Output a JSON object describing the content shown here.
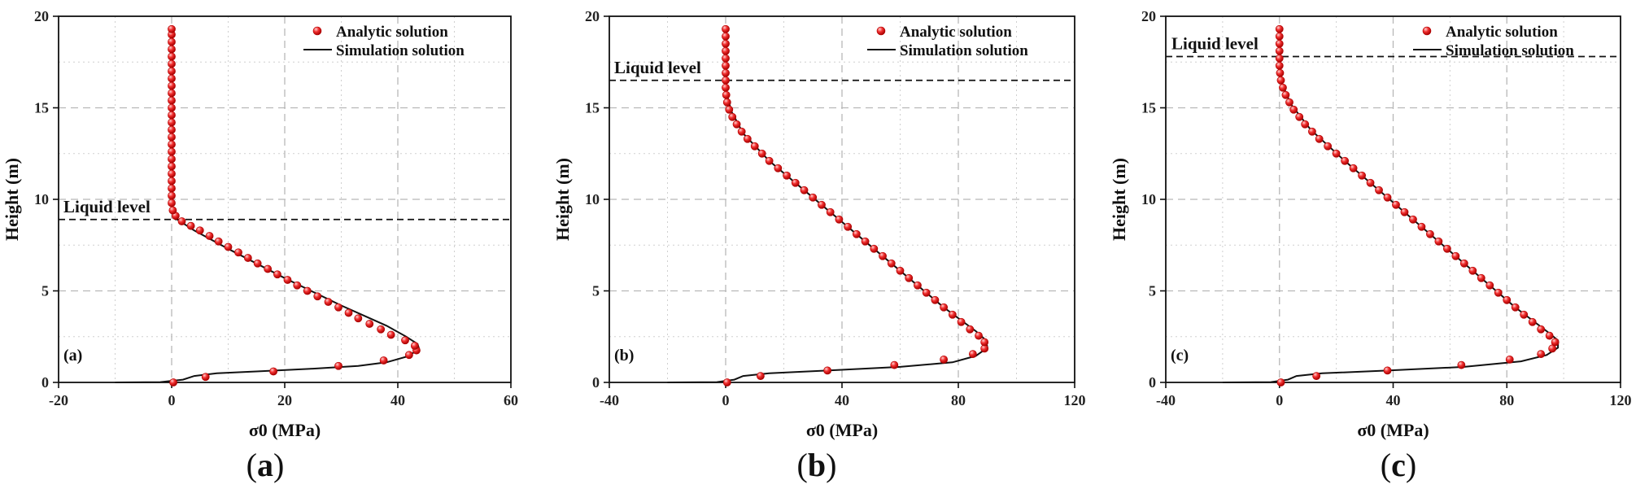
{
  "chart_data": [
    {
      "type": "scatter",
      "panel_label": "(a)",
      "caption": "(a)",
      "caption_bold": "a",
      "xlabel": "σ0 (MPa)",
      "ylabel": "Height (m)",
      "xlim": [
        -20,
        60
      ],
      "ylim": [
        0,
        20
      ],
      "xticks": [
        -20,
        0,
        20,
        40,
        60
      ],
      "yticks": [
        0,
        5,
        10,
        15,
        20
      ],
      "liquid_level": 8.9,
      "liquid_level_label": "Liquid level",
      "legend": [
        "Analytic solution",
        "Simulation solution"
      ],
      "series": [
        {
          "name": "Analytic solution",
          "marker": "circle",
          "points": [
            [
              0.3,
              0
            ],
            [
              6,
              0.3
            ],
            [
              18,
              0.6
            ],
            [
              29.5,
              0.9
            ],
            [
              37.5,
              1.2
            ],
            [
              42,
              1.5
            ],
            [
              43.3,
              1.75
            ],
            [
              43,
              2
            ],
            [
              41.3,
              2.3
            ],
            [
              38.8,
              2.6
            ],
            [
              37,
              2.9
            ],
            [
              35,
              3.2
            ],
            [
              33,
              3.5
            ],
            [
              31.3,
              3.8
            ],
            [
              29.5,
              4.1
            ],
            [
              27.7,
              4.4
            ],
            [
              25.8,
              4.7
            ],
            [
              24,
              5.0
            ],
            [
              22.2,
              5.3
            ],
            [
              20.5,
              5.6
            ],
            [
              18.7,
              5.9
            ],
            [
              17,
              6.2
            ],
            [
              15.2,
              6.5
            ],
            [
              13.5,
              6.8
            ],
            [
              11.8,
              7.1
            ],
            [
              10,
              7.4
            ],
            [
              8.3,
              7.7
            ],
            [
              6.7,
              8.0
            ],
            [
              5,
              8.3
            ],
            [
              3.4,
              8.55
            ],
            [
              1.8,
              8.8
            ],
            [
              0.7,
              9.1
            ],
            [
              0.2,
              9.4
            ],
            [
              0,
              9.8
            ],
            [
              0,
              10.2
            ],
            [
              0,
              10.6
            ],
            [
              0,
              11.0
            ],
            [
              0,
              11.4
            ],
            [
              0,
              11.8
            ],
            [
              0,
              12.2
            ],
            [
              0,
              12.6
            ],
            [
              0,
              13.0
            ],
            [
              0,
              13.4
            ],
            [
              0,
              13.8
            ],
            [
              0,
              14.2
            ],
            [
              0,
              14.6
            ],
            [
              0,
              15.0
            ],
            [
              0,
              15.4
            ],
            [
              0,
              15.8
            ],
            [
              0,
              16.2
            ],
            [
              0,
              16.6
            ],
            [
              0,
              17.0
            ],
            [
              0,
              17.4
            ],
            [
              0,
              17.8
            ],
            [
              0,
              18.2
            ],
            [
              0,
              18.6
            ],
            [
              0,
              19.0
            ],
            [
              0,
              19.3
            ]
          ]
        },
        {
          "name": "Simulation solution",
          "line": "solid",
          "points": [
            [
              -10,
              0
            ],
            [
              -2,
              0.02
            ],
            [
              2,
              0.15
            ],
            [
              4,
              0.35
            ],
            [
              8,
              0.5
            ],
            [
              15,
              0.6
            ],
            [
              25,
              0.75
            ],
            [
              33,
              0.9
            ],
            [
              38,
              1.1
            ],
            [
              41.5,
              1.4
            ],
            [
              43.8,
              1.8
            ],
            [
              43.5,
              2.1
            ],
            [
              41.5,
              2.5
            ],
            [
              38,
              3.1
            ],
            [
              30,
              4.2
            ],
            [
              20,
              5.7
            ],
            [
              10,
              7.3
            ],
            [
              4,
              8.3
            ],
            [
              1,
              8.9
            ],
            [
              0.2,
              9.3
            ],
            [
              0,
              10
            ],
            [
              0,
              19.3
            ]
          ]
        }
      ]
    },
    {
      "type": "scatter",
      "panel_label": "(b)",
      "caption": "(b)",
      "caption_bold": "b",
      "xlabel": "σ0 (MPa)",
      "ylabel": "Height (m)",
      "xlim": [
        -40,
        120
      ],
      "ylim": [
        0,
        20
      ],
      "xticks": [
        -40,
        0,
        40,
        80,
        120
      ],
      "yticks": [
        0,
        5,
        10,
        15,
        20
      ],
      "liquid_level": 16.5,
      "liquid_level_label": "Liquid level",
      "legend": [
        "Analytic solution",
        "Simulation solution"
      ],
      "series": [
        {
          "name": "Analytic solution",
          "marker": "circle",
          "points": [
            [
              0.5,
              0
            ],
            [
              12,
              0.35
            ],
            [
              35,
              0.65
            ],
            [
              58,
              0.95
            ],
            [
              75,
              1.25
            ],
            [
              85,
              1.55
            ],
            [
              89,
              1.85
            ],
            [
              89,
              2.2
            ],
            [
              87,
              2.55
            ],
            [
              84,
              2.9
            ],
            [
              81,
              3.3
            ],
            [
              78,
              3.7
            ],
            [
              75,
              4.1
            ],
            [
              72,
              4.5
            ],
            [
              69,
              4.9
            ],
            [
              66,
              5.3
            ],
            [
              63,
              5.7
            ],
            [
              60,
              6.1
            ],
            [
              57,
              6.5
            ],
            [
              54,
              6.9
            ],
            [
              51,
              7.3
            ],
            [
              48,
              7.7
            ],
            [
              45,
              8.1
            ],
            [
              42,
              8.5
            ],
            [
              39,
              8.9
            ],
            [
              36,
              9.3
            ],
            [
              33,
              9.7
            ],
            [
              30,
              10.1
            ],
            [
              27,
              10.5
            ],
            [
              24,
              10.9
            ],
            [
              21,
              11.3
            ],
            [
              18,
              11.7
            ],
            [
              15,
              12.1
            ],
            [
              12.5,
              12.5
            ],
            [
              10,
              12.9
            ],
            [
              7.5,
              13.3
            ],
            [
              5.5,
              13.7
            ],
            [
              3.8,
              14.1
            ],
            [
              2.3,
              14.5
            ],
            [
              1.2,
              14.9
            ],
            [
              0.5,
              15.3
            ],
            [
              0.2,
              15.7
            ],
            [
              0,
              16.1
            ],
            [
              0,
              16.5
            ],
            [
              0,
              16.9
            ],
            [
              0,
              17.3
            ],
            [
              0,
              17.7
            ],
            [
              0,
              18.1
            ],
            [
              0,
              18.5
            ],
            [
              0,
              18.9
            ],
            [
              0,
              19.3
            ]
          ]
        },
        {
          "name": "Simulation solution",
          "line": "solid",
          "points": [
            [
              -20,
              0
            ],
            [
              -3,
              0.02
            ],
            [
              3,
              0.15
            ],
            [
              6,
              0.35
            ],
            [
              15,
              0.5
            ],
            [
              35,
              0.65
            ],
            [
              60,
              0.85
            ],
            [
              78,
              1.1
            ],
            [
              86,
              1.45
            ],
            [
              90,
              1.9
            ],
            [
              89.5,
              2.3
            ],
            [
              86,
              2.8
            ],
            [
              75,
              4.1
            ],
            [
              60,
              6.1
            ],
            [
              45,
              8.1
            ],
            [
              30,
              10.1
            ],
            [
              15,
              12.1
            ],
            [
              6,
              13.6
            ],
            [
              2,
              14.8
            ],
            [
              0.3,
              15.8
            ],
            [
              0,
              16.5
            ],
            [
              0,
              19.3
            ]
          ]
        }
      ]
    },
    {
      "type": "scatter",
      "panel_label": "(c)",
      "caption": "(c)",
      "caption_bold": "c",
      "xlabel": "σ0 (MPa)",
      "ylabel": "Height (m)",
      "xlim": [
        -40,
        120
      ],
      "ylim": [
        0,
        20
      ],
      "xticks": [
        -40,
        0,
        40,
        80,
        120
      ],
      "yticks": [
        0,
        5,
        10,
        15,
        20
      ],
      "liquid_level": 17.8,
      "liquid_level_label": "Liquid level",
      "legend": [
        "Analytic solution",
        "Simulation solution"
      ],
      "series": [
        {
          "name": "Analytic solution",
          "marker": "circle",
          "points": [
            [
              0.5,
              0
            ],
            [
              13,
              0.35
            ],
            [
              38,
              0.65
            ],
            [
              64,
              0.95
            ],
            [
              81,
              1.25
            ],
            [
              92,
              1.55
            ],
            [
              96,
              1.85
            ],
            [
              97,
              2.2
            ],
            [
              95,
              2.55
            ],
            [
              92,
              2.9
            ],
            [
              89,
              3.3
            ],
            [
              86,
              3.7
            ],
            [
              83,
              4.1
            ],
            [
              80,
              4.5
            ],
            [
              77,
              4.9
            ],
            [
              74,
              5.3
            ],
            [
              71,
              5.7
            ],
            [
              68,
              6.1
            ],
            [
              65,
              6.5
            ],
            [
              62,
              6.9
            ],
            [
              59,
              7.3
            ],
            [
              56,
              7.7
            ],
            [
              53,
              8.1
            ],
            [
              50,
              8.5
            ],
            [
              47,
              8.9
            ],
            [
              44,
              9.3
            ],
            [
              41,
              9.7
            ],
            [
              38,
              10.1
            ],
            [
              35,
              10.5
            ],
            [
              32,
              10.9
            ],
            [
              29,
              11.3
            ],
            [
              26,
              11.7
            ],
            [
              23,
              12.1
            ],
            [
              20,
              12.5
            ],
            [
              17,
              12.9
            ],
            [
              14,
              13.3
            ],
            [
              11.5,
              13.7
            ],
            [
              9,
              14.1
            ],
            [
              7,
              14.5
            ],
            [
              5,
              14.9
            ],
            [
              3.5,
              15.3
            ],
            [
              2.2,
              15.7
            ],
            [
              1.2,
              16.1
            ],
            [
              0.5,
              16.5
            ],
            [
              0.2,
              16.9
            ],
            [
              0,
              17.3
            ],
            [
              0,
              17.7
            ],
            [
              0,
              18.1
            ],
            [
              0,
              18.5
            ],
            [
              0,
              18.9
            ],
            [
              0,
              19.3
            ]
          ]
        },
        {
          "name": "Simulation solution",
          "line": "solid",
          "points": [
            [
              -20,
              0
            ],
            [
              -3,
              0.02
            ],
            [
              3,
              0.15
            ],
            [
              6,
              0.35
            ],
            [
              15,
              0.5
            ],
            [
              38,
              0.65
            ],
            [
              65,
              0.85
            ],
            [
              85,
              1.15
            ],
            [
              94,
              1.5
            ],
            [
              98,
              1.9
            ],
            [
              98,
              2.3
            ],
            [
              94,
              2.8
            ],
            [
              83,
              4.1
            ],
            [
              68,
              6.1
            ],
            [
              53,
              8.1
            ],
            [
              38,
              10.1
            ],
            [
              23,
              12.1
            ],
            [
              11,
              13.8
            ],
            [
              4,
              15.2
            ],
            [
              1,
              16.3
            ],
            [
              0,
              17.3
            ],
            [
              0,
              19.3
            ]
          ]
        }
      ]
    }
  ]
}
